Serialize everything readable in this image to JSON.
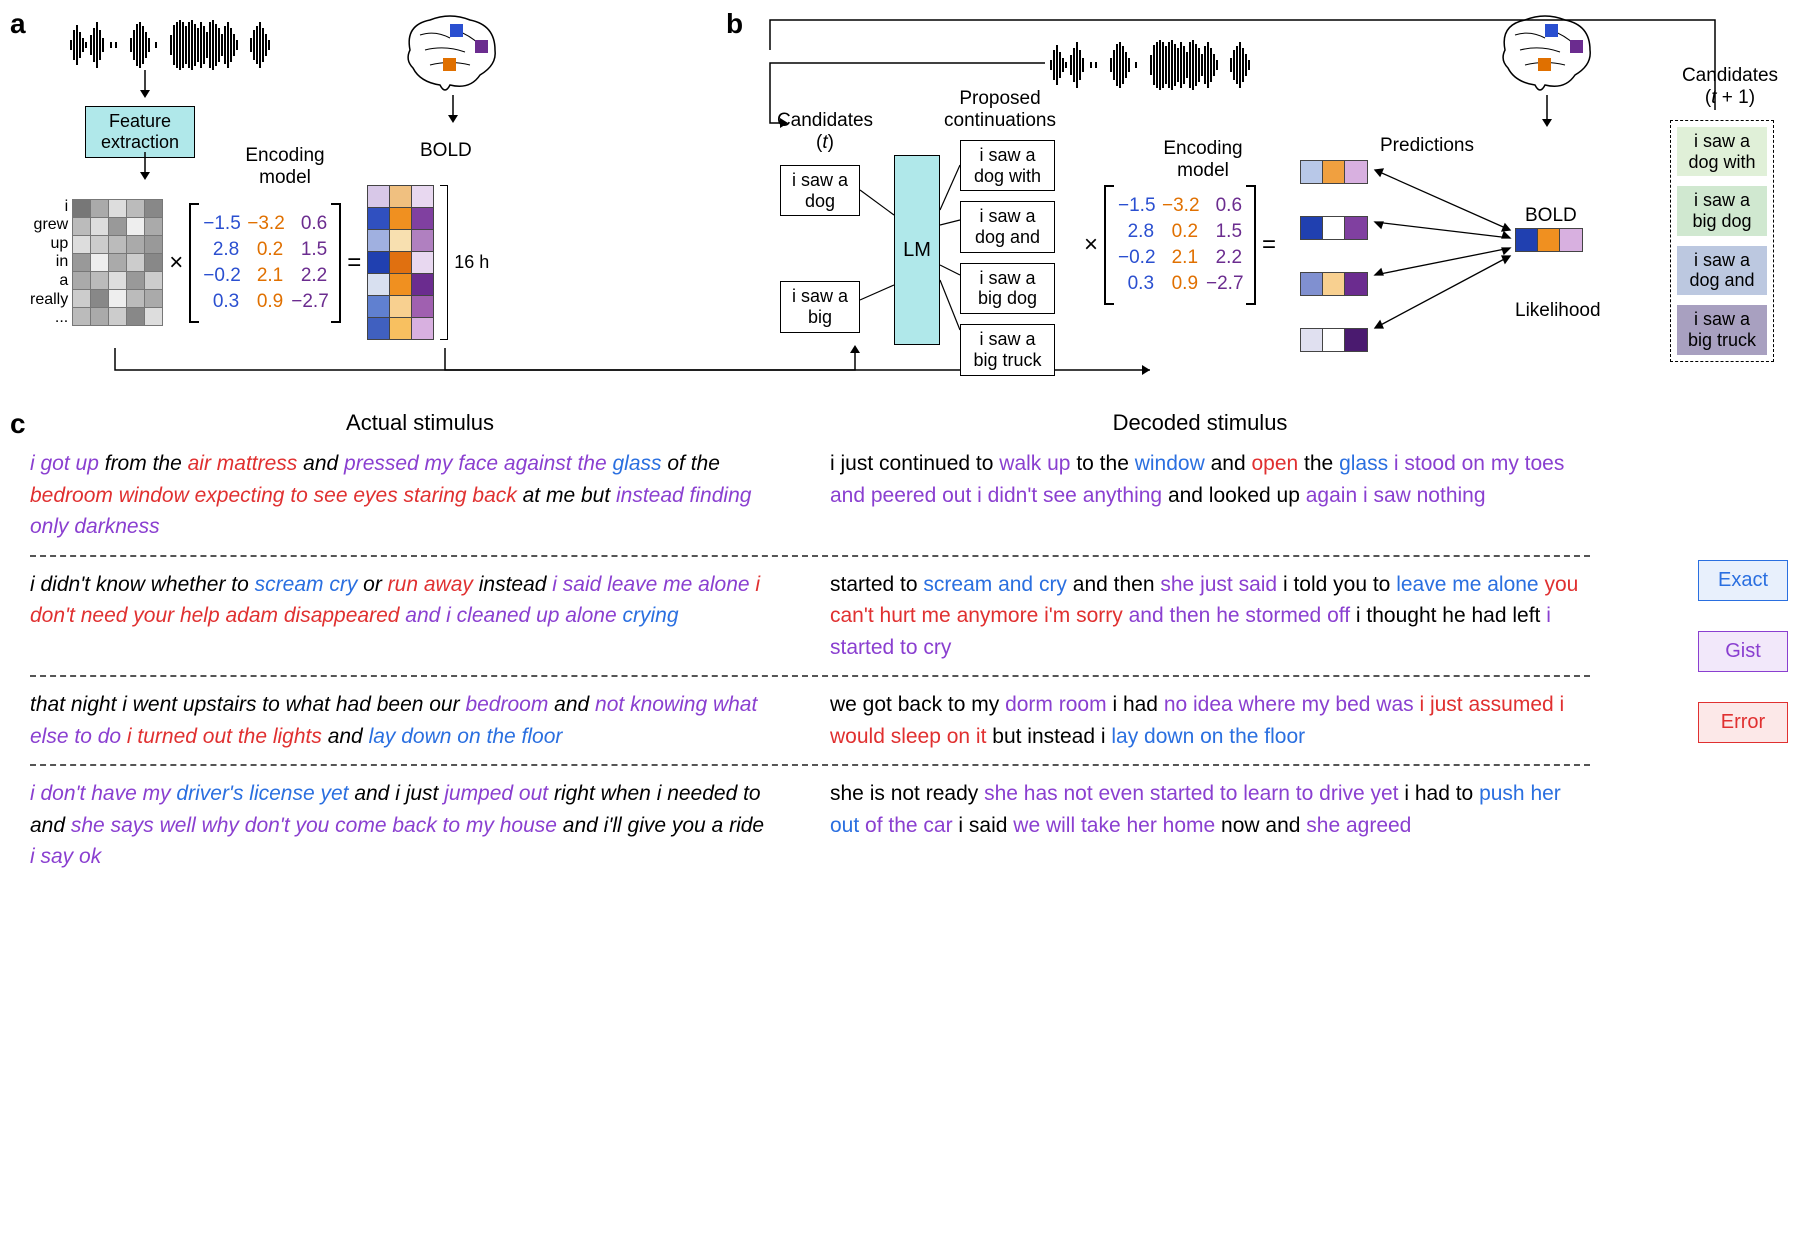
{
  "panels": {
    "a": "a",
    "b": "b",
    "c": "c"
  },
  "panelA": {
    "feature_extraction": "Feature extraction",
    "encoding_model_label": "Encoding model",
    "bold_label": "BOLD",
    "duration_label": "16 h",
    "words": [
      "i",
      "grew",
      "up",
      "in",
      "a",
      "really",
      "..."
    ],
    "feature_matrix_gray": [
      [
        "#777",
        "#aaa",
        "#ddd",
        "#bbb",
        "#888"
      ],
      [
        "#bbb",
        "#ddd",
        "#999",
        "#eee",
        "#aaa"
      ],
      [
        "#ddd",
        "#ccc",
        "#bbb",
        "#aaa",
        "#999"
      ],
      [
        "#999",
        "#eee",
        "#aaa",
        "#ccc",
        "#888"
      ],
      [
        "#aaa",
        "#bbb",
        "#ddd",
        "#999",
        "#ccc"
      ],
      [
        "#ccc",
        "#888",
        "#eee",
        "#bbb",
        "#aaa"
      ],
      [
        "#bbb",
        "#aaa",
        "#ccc",
        "#888",
        "#ddd"
      ]
    ],
    "encoding_model": [
      [
        "−1.5",
        "−3.2",
        "0.6"
      ],
      [
        "2.8",
        "0.2",
        "1.5"
      ],
      [
        "−0.2",
        "2.1",
        "2.2"
      ],
      [
        "0.3",
        "0.9",
        "−2.7"
      ]
    ],
    "encoding_colors": [
      "c-blue",
      "c-orange",
      "c-purple"
    ],
    "bold_grid": [
      [
        "#d8c8e8",
        "#f0c080",
        "#e8d8f0"
      ],
      [
        "#3050c0",
        "#f09020",
        "#8040a0"
      ],
      [
        "#a0b0e0",
        "#f8e0b0",
        "#b080c0"
      ],
      [
        "#2040b0",
        "#e07010",
        "#e8d8f0"
      ],
      [
        "#d8e0f0",
        "#f09020",
        "#6b2c8f"
      ],
      [
        "#6080d0",
        "#f8d090",
        "#a060b0"
      ],
      [
        "#4060c0",
        "#f8c060",
        "#d8b0e0"
      ]
    ],
    "brain_regions": [
      "#2a4fd0",
      "#e07000",
      "#6b2c8f"
    ]
  },
  "panelB": {
    "candidates_t_label": "Candidates (t)",
    "candidates_t1_label": "Candidates (t + 1)",
    "proposed_label": "Proposed continuations",
    "lm_label": "LM",
    "encoding_model_label": "Encoding model",
    "bold_label": "BOLD",
    "predictions_label": "Predictions",
    "likelihood_label": "Likelihood",
    "candidates_t": [
      "i saw a dog",
      "i saw a big"
    ],
    "proposed": [
      "i saw a dog with",
      "i saw a dog and",
      "i saw a big dog",
      "i saw a big truck"
    ],
    "candidates_t1": [
      {
        "text": "i saw a dog with",
        "bg": "#e0f0d8"
      },
      {
        "text": "i saw a big dog",
        "bg": "#d0e8d0"
      },
      {
        "text": "i saw a dog and",
        "bg": "#bcc8e0"
      },
      {
        "text": "i saw a big truck",
        "bg": "#a8a0c0"
      }
    ],
    "encoding_model": [
      [
        "−1.5",
        "−3.2",
        "0.6"
      ],
      [
        "2.8",
        "0.2",
        "1.5"
      ],
      [
        "−0.2",
        "2.1",
        "2.2"
      ],
      [
        "0.3",
        "0.9",
        "−2.7"
      ]
    ],
    "predictions": [
      [
        "#b8c8e8",
        "#f0a040",
        "#d8b0e0"
      ],
      [
        "#2040b0",
        "#fff",
        "#8040a0"
      ],
      [
        "#8090d0",
        "#f8d090",
        "#6b2c8f"
      ],
      [
        "#e0e0f0",
        "#fff",
        "#4a1a6f"
      ]
    ],
    "bold_measured": [
      "#2040b0",
      "#f09020",
      "#d8b0e0"
    ]
  },
  "panelC": {
    "header_actual": "Actual stimulus",
    "header_decoded": "Decoded stimulus",
    "legend": {
      "exact": {
        "label": "Exact",
        "border": "#2a6fe0",
        "bg": "#e8f0fc"
      },
      "gist": {
        "label": "Gist",
        "border": "#8a3fd0",
        "bg": "#f2e8fa"
      },
      "error": {
        "label": "Error",
        "border": "#e03030",
        "bg": "#fce8e8"
      }
    },
    "rows": [
      {
        "actual": [
          {
            "t": "i got up ",
            "c": "t-purple"
          },
          {
            "t": "from the  ",
            "c": "t-black"
          },
          {
            "t": "air mattress ",
            "c": "t-red"
          },
          {
            "t": "and ",
            "c": "t-black"
          },
          {
            "t": "pressed my face against the ",
            "c": "t-purple"
          },
          {
            "t": "glass ",
            "c": "t-blue"
          },
          {
            "t": "of the ",
            "c": "t-black"
          },
          {
            "t": "bedroom window expecting to see eyes staring back ",
            "c": "t-red"
          },
          {
            "t": "at me but ",
            "c": "t-black"
          },
          {
            "t": "instead finding only darkness",
            "c": "t-purple"
          }
        ],
        "decoded": [
          {
            "t": "i just continued to ",
            "c": "t-black"
          },
          {
            "t": "walk up ",
            "c": "t-purple"
          },
          {
            "t": "to the ",
            "c": "t-black"
          },
          {
            "t": "window ",
            "c": "t-blue"
          },
          {
            "t": "and ",
            "c": "t-black"
          },
          {
            "t": "open ",
            "c": "t-red"
          },
          {
            "t": "the ",
            "c": "t-black"
          },
          {
            "t": "glass ",
            "c": "t-blue"
          },
          {
            "t": "i stood on my toes and peered out i didn't see anything ",
            "c": "t-purple"
          },
          {
            "t": "and looked up ",
            "c": "t-black"
          },
          {
            "t": "again i saw nothing",
            "c": "t-purple"
          }
        ]
      },
      {
        "actual": [
          {
            "t": "i didn't know whether to ",
            "c": "t-black"
          },
          {
            "t": "scream cry ",
            "c": "t-blue"
          },
          {
            "t": "or ",
            "c": "t-black"
          },
          {
            "t": "run away ",
            "c": "t-red"
          },
          {
            "t": "instead ",
            "c": "t-black"
          },
          {
            "t": "i said leave me alone ",
            "c": "t-purple"
          },
          {
            "t": "i don't need your help adam disappeared ",
            "c": "t-red"
          },
          {
            "t": "and i cleaned up alone ",
            "c": "t-purple"
          },
          {
            "t": "crying",
            "c": "t-blue"
          }
        ],
        "decoded": [
          {
            "t": "started to ",
            "c": "t-black"
          },
          {
            "t": "scream and cry ",
            "c": "t-blue"
          },
          {
            "t": "and then ",
            "c": "t-black"
          },
          {
            "t": "she just said ",
            "c": "t-purple"
          },
          {
            "t": "i told you to ",
            "c": "t-black"
          },
          {
            "t": "leave me alone ",
            "c": "t-blue"
          },
          {
            "t": "you can't hurt me anymore i'm sorry ",
            "c": "t-red"
          },
          {
            "t": "and then he stormed off ",
            "c": "t-purple"
          },
          {
            "t": "i thought he had left ",
            "c": "t-black"
          },
          {
            "t": "i started to cry",
            "c": "t-purple"
          }
        ]
      },
      {
        "actual": [
          {
            "t": "that night i went upstairs to what had been our ",
            "c": "t-black"
          },
          {
            "t": "bedroom ",
            "c": "t-purple"
          },
          {
            "t": "and ",
            "c": "t-black"
          },
          {
            "t": "not knowing what else to do ",
            "c": "t-purple"
          },
          {
            "t": "i turned out the lights ",
            "c": "t-red"
          },
          {
            "t": "and ",
            "c": "t-black"
          },
          {
            "t": "lay down on the floor",
            "c": "t-blue"
          }
        ],
        "decoded": [
          {
            "t": "we got back to my ",
            "c": "t-black"
          },
          {
            "t": "dorm room ",
            "c": "t-purple"
          },
          {
            "t": "i had ",
            "c": "t-black"
          },
          {
            "t": "no idea where my bed was ",
            "c": "t-purple"
          },
          {
            "t": "i just assumed i would sleep on it ",
            "c": "t-red"
          },
          {
            "t": "but instead i ",
            "c": "t-black"
          },
          {
            "t": "lay down on the floor",
            "c": "t-blue"
          }
        ]
      },
      {
        "actual": [
          {
            "t": "i don't have my ",
            "c": "t-purple"
          },
          {
            "t": "driver's license yet ",
            "c": "t-blue"
          },
          {
            "t": "and i just ",
            "c": "t-black"
          },
          {
            "t": "jumped out ",
            "c": "t-purple"
          },
          {
            "t": "right when i needed to and ",
            "c": "t-black"
          },
          {
            "t": "she says well why don't you come back to my house ",
            "c": "t-purple"
          },
          {
            "t": "and i'll give you a ride ",
            "c": "t-black"
          },
          {
            "t": "i say ok",
            "c": "t-purple"
          }
        ],
        "decoded": [
          {
            "t": "she is not ready ",
            "c": "t-black"
          },
          {
            "t": "she has not even started to learn to drive yet ",
            "c": "t-purple"
          },
          {
            "t": "i had to ",
            "c": "t-black"
          },
          {
            "t": "push her out ",
            "c": "t-blue"
          },
          {
            "t": "of the car ",
            "c": "t-purple"
          },
          {
            "t": "i said ",
            "c": "t-black"
          },
          {
            "t": "we will take her home ",
            "c": "t-purple"
          },
          {
            "t": "now and ",
            "c": "t-black"
          },
          {
            "t": "she agreed",
            "c": "t-purple"
          }
        ]
      }
    ]
  }
}
